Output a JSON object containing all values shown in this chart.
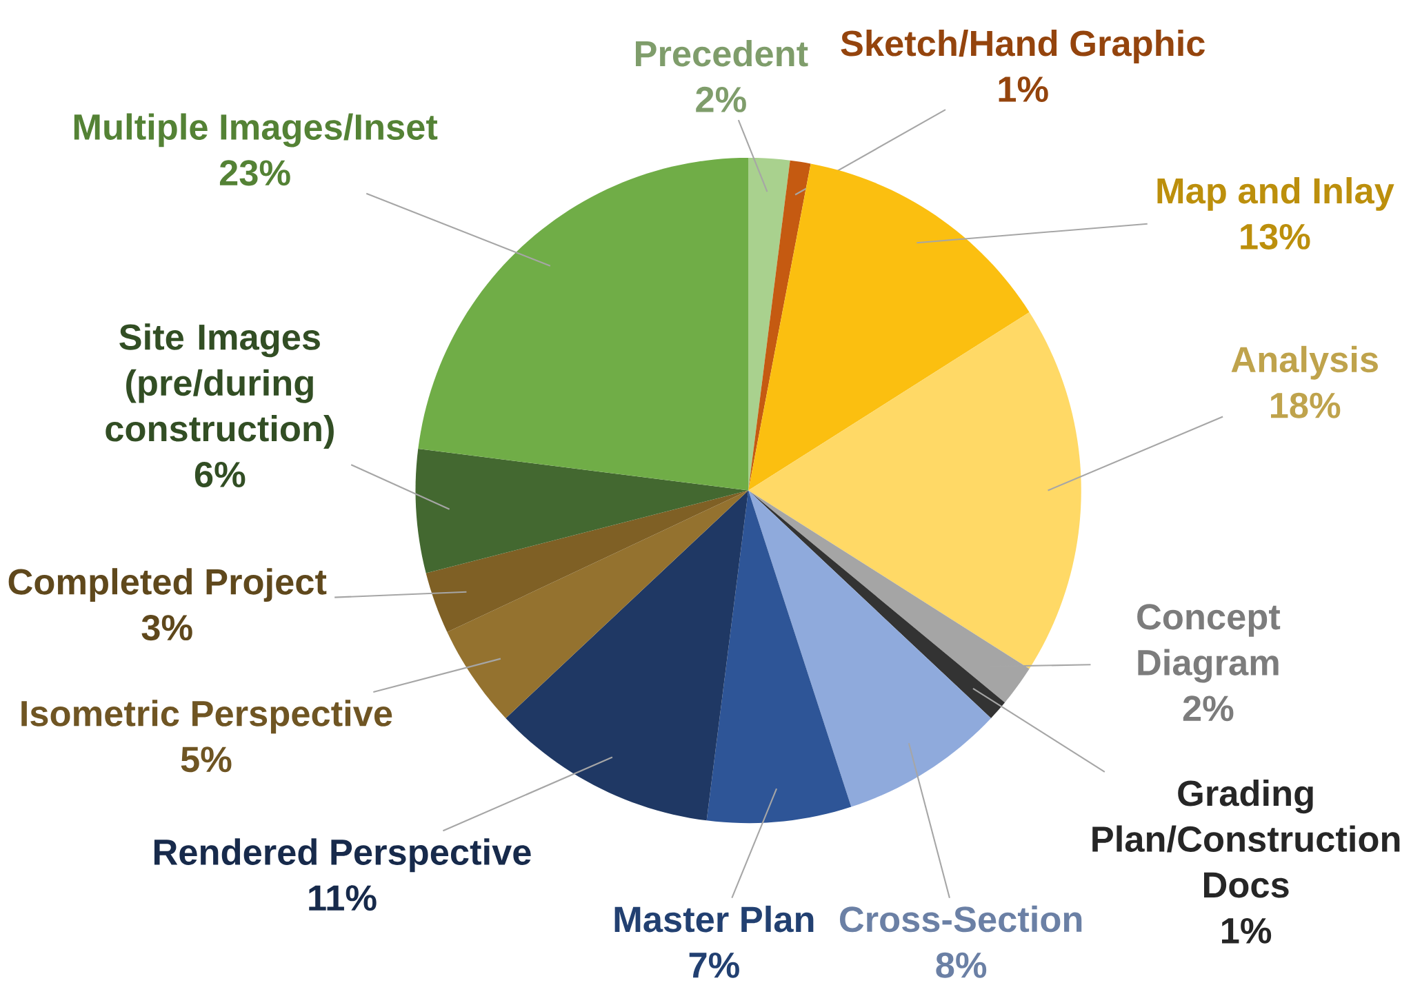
{
  "chart_data": {
    "type": "pie",
    "categories": [
      "Precedent",
      "Sketch/Hand Graphic",
      "Map and Inlay",
      "Analysis",
      "Concept Diagram",
      "Grading Plan/Construction Docs",
      "Cross-Section",
      "Master Plan",
      "Rendered Perspective",
      "Isometric Perspective",
      "Completed Project",
      "Site Images (pre/during construction)",
      "Multiple Images/Inset"
    ],
    "values": [
      2,
      1,
      13,
      18,
      2,
      1,
      8,
      7,
      11,
      5,
      3,
      6,
      23
    ],
    "value_labels": [
      "2%",
      "1%",
      "13%",
      "18%",
      "2%",
      "1%",
      "8%",
      "7%",
      "11%",
      "5%",
      "3%",
      "6%",
      "23%"
    ],
    "colors": [
      "#a9d18e",
      "#c55a11",
      "#fbbf10",
      "#ffd966",
      "#a5a5a5",
      "#333333",
      "#8faadc",
      "#2e5597",
      "#1f3864",
      "#94722f",
      "#7f6025",
      "#436830",
      "#70ad47"
    ]
  }
}
